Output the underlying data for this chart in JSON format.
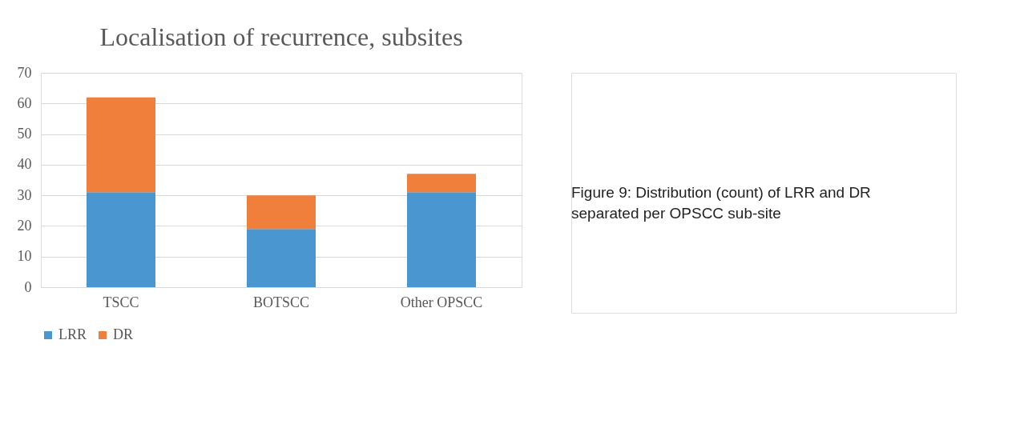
{
  "chart_data": {
    "type": "bar",
    "title": "Localisation of recurrence, subsites",
    "categories": [
      "TSCC",
      "BOTSCC",
      "Other OPSCC"
    ],
    "stacked": true,
    "series": [
      {
        "name": "LRR",
        "color": "#4a96d0",
        "values": [
          31,
          19,
          31
        ]
      },
      {
        "name": "DR",
        "color": "#ef7f3a",
        "values": [
          31,
          11,
          6
        ]
      }
    ],
    "ylim": [
      0,
      70
    ],
    "yticks": [
      0,
      10,
      20,
      30,
      40,
      50,
      60,
      70
    ],
    "grid": "y",
    "legend": "bottom",
    "annotations": [
      "Figure 9: Distribution (count) of LRR and DR separated per OPSCC sub-site"
    ]
  }
}
